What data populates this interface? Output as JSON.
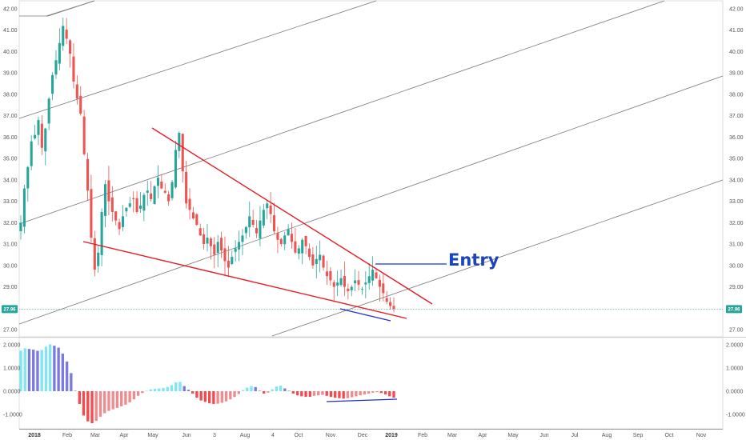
{
  "chart_data": [
    {
      "type": "candlestick",
      "panel": "price",
      "y_ticks": [
        "42.00",
        "41.00",
        "40.00",
        "39.00",
        "38.00",
        "37.00",
        "36.00",
        "35.00",
        "34.00",
        "33.00",
        "32.00",
        "31.00",
        "30.00",
        "29.00",
        "28.00",
        "27.00"
      ],
      "ylim": [
        26.4,
        42.6
      ],
      "last_price": "27.96",
      "colors": {
        "up": "#26a69a",
        "down": "#ef5350",
        "trendline": "#e51c23",
        "divergence": "#1f2fd6",
        "channel": "#777777",
        "last_price_line": "#26a69a"
      },
      "series_close": [
        32.0,
        33.6,
        34.6,
        35.8,
        36.1,
        36.8,
        35.5,
        36.4,
        37.8,
        38.9,
        39.6,
        40.4,
        41.2,
        40.6,
        39.9,
        38.6,
        37.8,
        37.1,
        35.2,
        33.5,
        31.3,
        29.8,
        30.6,
        32.5,
        33.8,
        33.0,
        32.5,
        32.1,
        31.7,
        32.3,
        32.7,
        32.9,
        33.1,
        32.5,
        32.8,
        33.3,
        33.5,
        33.1,
        33.7,
        34.1,
        33.6,
        33.4,
        33.0,
        33.9,
        35.4,
        36.2,
        34.4,
        32.9,
        32.6,
        32.2,
        31.9,
        31.4,
        31.0,
        31.3,
        30.9,
        30.5,
        31.1,
        30.7,
        30.2,
        29.9,
        30.4,
        30.8,
        31.1,
        31.4,
        31.8,
        32.3,
        31.9,
        31.5,
        32.1,
        32.6,
        32.9,
        32.4,
        31.6,
        31.2,
        31.0,
        31.4,
        31.7,
        31.1,
        30.6,
        30.8,
        31.2,
        30.9,
        30.4,
        30.0,
        30.3,
        30.5,
        29.9,
        29.5,
        29.3,
        29.0,
        29.2,
        29.4,
        29.0,
        28.8,
        29.0,
        29.3,
        29.1,
        28.9,
        29.2,
        29.5,
        29.8,
        29.4,
        29.0,
        28.7,
        28.3,
        28.1,
        27.96
      ],
      "annotation": "Entry"
    },
    {
      "type": "bar",
      "panel": "oscillator",
      "y_ticks": [
        "2.0000",
        "1.0000",
        "0.0000",
        "-1.0000"
      ],
      "ylim": [
        -1.45,
        2.2
      ],
      "colors": {
        "pos_strong": "#7fe6f2",
        "pos_weak": "#7a7ae0",
        "neg_strong": "#f24b50",
        "neg_weak": "#f08b8f"
      },
      "values": [
        1.75,
        1.85,
        1.82,
        1.79,
        1.74,
        1.78,
        1.92,
        2.02,
        1.96,
        1.88,
        1.62,
        1.28,
        0.78,
        0.02,
        -0.55,
        -1.05,
        -1.3,
        -1.38,
        -1.28,
        -1.1,
        -0.95,
        -0.85,
        -0.78,
        -0.72,
        -0.65,
        -0.58,
        -0.48,
        -0.35,
        -0.2,
        -0.08,
        0.02,
        0.08,
        0.1,
        0.12,
        0.14,
        0.18,
        0.26,
        0.38,
        0.4,
        0.22,
        0.06,
        -0.1,
        -0.28,
        -0.4,
        -0.46,
        -0.52,
        -0.55,
        -0.54,
        -0.5,
        -0.44,
        -0.35,
        -0.25,
        -0.12,
        0.05,
        0.15,
        0.22,
        0.18,
        0.02,
        -0.1,
        -0.06,
        0.08,
        0.2,
        0.24,
        0.12,
        0.02,
        -0.1,
        -0.18,
        -0.22,
        -0.24,
        -0.24,
        -0.2,
        -0.18,
        -0.16,
        -0.2,
        -0.25,
        -0.28,
        -0.3,
        -0.32,
        -0.3,
        -0.26,
        -0.22,
        -0.18,
        -0.14,
        -0.1,
        -0.06,
        -0.04,
        -0.08,
        -0.14,
        -0.22,
        -0.28
      ]
    }
  ],
  "x_ticks": [
    {
      "label": "2018",
      "bold": true
    },
    {
      "label": "Feb"
    },
    {
      "label": "Mar"
    },
    {
      "label": "Apr"
    },
    {
      "label": "May"
    },
    {
      "label": "Jun"
    },
    {
      "label": "3"
    },
    {
      "label": "Aug"
    },
    {
      "label": "4"
    },
    {
      "label": "Oct"
    },
    {
      "label": "Nov"
    },
    {
      "label": "Dec"
    },
    {
      "label": "2019",
      "bold": true
    },
    {
      "label": "Feb"
    },
    {
      "label": "Mar"
    },
    {
      "label": "Apr"
    },
    {
      "label": "May"
    },
    {
      "label": "Jun"
    },
    {
      "label": "Jul"
    },
    {
      "label": "Aug"
    },
    {
      "label": "Sep"
    },
    {
      "label": "Oct"
    },
    {
      "label": "Nov"
    }
  ]
}
